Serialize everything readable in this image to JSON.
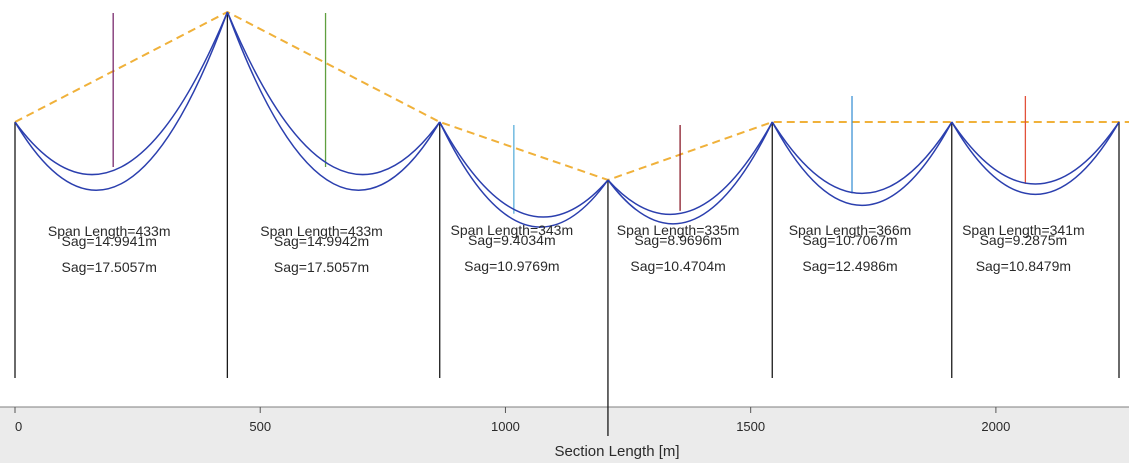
{
  "chart_data": {
    "type": "line",
    "title": "",
    "xlabel": "Section Length [m]",
    "ylabel": "",
    "xlim": [
      0,
      2290
    ],
    "xticks": [
      0,
      500,
      1000,
      1500,
      2000
    ],
    "xtick_labels": [
      "0",
      "500",
      "1000",
      "1500",
      "2000"
    ],
    "grid": false,
    "legend": "none",
    "colors": {
      "conductor": "#2b3fae",
      "envelope": "#f0b13a",
      "tower": "#1a1a1a",
      "axis_band": "#ebebeb"
    },
    "towers": [
      {
        "x": 0,
        "top": 0,
        "ground": 270
      },
      {
        "x": 433,
        "top": 110,
        "ground": 270
      },
      {
        "x": 866,
        "top": 0,
        "ground": 270
      },
      {
        "x": 1209,
        "top": -58,
        "ground": 300
      },
      {
        "x": 1544,
        "top": 0,
        "ground": 270
      },
      {
        "x": 1910,
        "top": 0,
        "ground": 270
      },
      {
        "x": 2251,
        "top": 0,
        "ground": 270
      }
    ],
    "spans": [
      {
        "span_label": "Span Length=433m",
        "sag_label_1": "Sag=14.9941m",
        "sag_label_2": "Sag=17.5057m",
        "sag_1": 14.9941,
        "sag_2": 17.5057,
        "marker_color": "#7a2a6e"
      },
      {
        "span_label": "Span Length=433m",
        "sag_label_1": "Sag=14.9942m",
        "sag_label_2": "Sag=17.5057m",
        "sag_1": 14.9942,
        "sag_2": 17.5057,
        "marker_color": "#5f9f3f"
      },
      {
        "span_label": "Span Length=343m",
        "sag_label_1": "Sag=9.4034m",
        "sag_label_2": "Sag=10.9769m",
        "sag_1": 9.4034,
        "sag_2": 10.9769,
        "marker_color": "#5db0dc"
      },
      {
        "span_label": "Span Length=335m",
        "sag_label_1": "Sag=8.9696m",
        "sag_label_2": "Sag=10.4704m",
        "sag_1": 8.9696,
        "sag_2": 10.4704,
        "marker_color": "#8a1a2a"
      },
      {
        "span_label": "Span Length=366m",
        "sag_label_1": "Sag=10.7067m",
        "sag_label_2": "Sag=12.4986m",
        "sag_1": 10.7067,
        "sag_2": 12.4986,
        "marker_color": "#3f93d6"
      },
      {
        "span_label": "Span Length=341m",
        "sag_label_1": "Sag=9.2875m",
        "sag_label_2": "Sag=10.8479m",
        "sag_1": 9.2875,
        "sag_2": 10.8479,
        "marker_color": "#e2513a"
      }
    ]
  }
}
